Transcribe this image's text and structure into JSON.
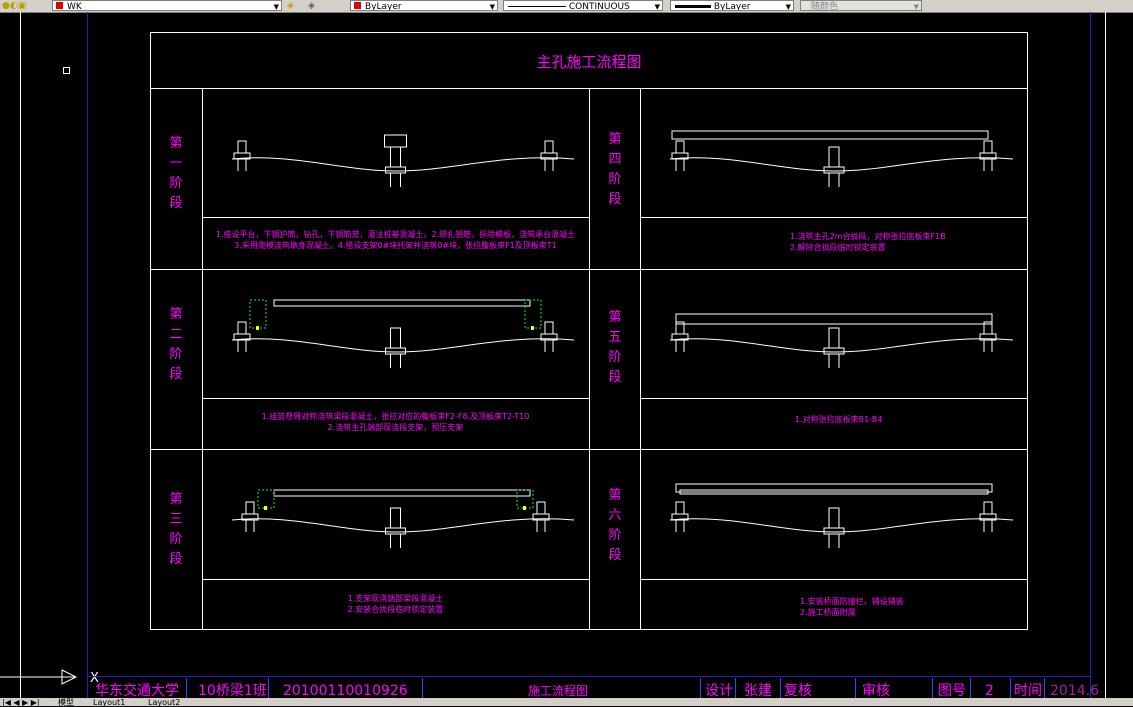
{
  "toolbar": {
    "layer_name": "WK",
    "color": "ByLayer",
    "linetype": "CONTINUOUS",
    "lineweight": "ByLayer",
    "plot_style": "随颜色",
    "color_swatch": "#e00000"
  },
  "drawing": {
    "title": "主孔施工流程图",
    "accent_color": "#ff00ff",
    "stages": [
      {
        "label": "第一阶段",
        "notes": [
          "1.搭设平台，下钢护筒，钻孔，下钢筋笼，灌注桩基混凝土。2.绑扎钢筋，拆除模板，浇筑承台混凝土",
          "3.采用爬模浇筑墩身混凝土。4.搭设支架0#块托架并浇筑0#块，张拉腹板束F1及顶板束T1"
        ]
      },
      {
        "label": "第二阶段",
        "notes": [
          "1.挂篮悬臂对称浇筑梁段混凝土，张拉对应的腹板束F2-F8,及顶板束T2-T10",
          "2.浇筑主孔端部现浇段支架，预压支架"
        ]
      },
      {
        "label": "第三阶段",
        "notes": [
          "1.支架现浇端部梁段混凝土",
          "2.安装合拢段临时锁定装置"
        ]
      },
      {
        "label": "第四阶段",
        "notes": [
          "1.浇筑主孔2m合拢段，对称张拉底板束F1B",
          "2.解除合拢段临时锁定装置"
        ]
      },
      {
        "label": "第五阶段",
        "notes": [
          "1.对称张拉底板束B1-B4"
        ]
      },
      {
        "label": "第六阶段",
        "notes": [
          "1.安装桥面防撞栏，铺设铺装",
          "2.施工桥面附属"
        ]
      }
    ]
  },
  "title_block": {
    "school": "华东交通大学",
    "class": "10桥梁1班",
    "student_id": "20100110010926",
    "drawing_name": "施工流程图",
    "design_label": "设计",
    "designer": "张建",
    "check_label": "复核",
    "review_label": "审核",
    "figure_no_label": "图号",
    "figure_no": "2",
    "date_label": "时间",
    "date": "2014.6"
  },
  "layout_tabs": [
    "模型",
    "Layout1",
    "Layout2"
  ]
}
